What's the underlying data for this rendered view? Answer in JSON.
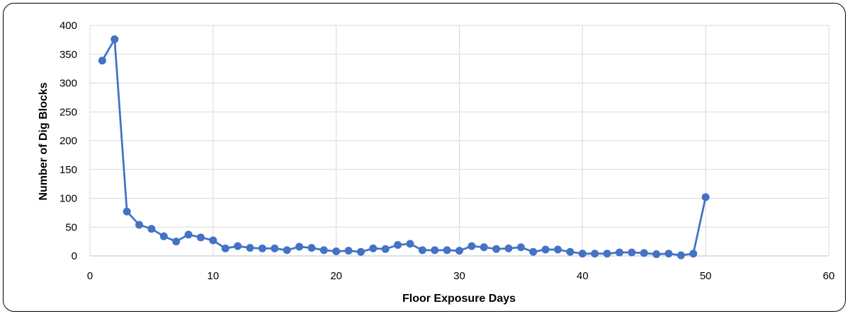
{
  "chart_data": {
    "type": "line",
    "title": "",
    "xlabel": "Floor Exposure Days",
    "ylabel": "Number of Dig Blocks",
    "xlim": [
      0,
      60
    ],
    "ylim": [
      0,
      400
    ],
    "x_ticks": [
      "0",
      "10",
      "20",
      "30",
      "40",
      "50",
      "60"
    ],
    "y_ticks": [
      "0",
      "50",
      "100",
      "150",
      "200",
      "250",
      "300",
      "350",
      "400"
    ],
    "grid": true,
    "legend": "none",
    "series_color": "#4472C4",
    "series": [
      {
        "x": [
          1,
          2,
          3,
          4,
          5,
          6,
          7,
          8,
          9,
          10,
          11,
          12,
          13,
          14,
          15,
          16,
          17,
          18,
          19,
          20,
          21,
          22,
          23,
          24,
          25,
          26,
          27,
          28,
          29,
          30,
          31,
          32,
          33,
          34,
          35,
          36,
          37,
          38,
          39,
          40,
          41,
          42,
          43,
          44,
          45,
          46,
          47,
          48,
          49,
          50
        ],
        "values": [
          339,
          376,
          77,
          54,
          47,
          34,
          25,
          37,
          32,
          27,
          13,
          17,
          14,
          13,
          13,
          10,
          16,
          14,
          10,
          8,
          9,
          7,
          13,
          12,
          19,
          21,
          10,
          10,
          10,
          9,
          17,
          15,
          12,
          13,
          15,
          7,
          11,
          11,
          7,
          4,
          4,
          4,
          6,
          6,
          5,
          3,
          4,
          1,
          4,
          102
        ]
      }
    ]
  }
}
